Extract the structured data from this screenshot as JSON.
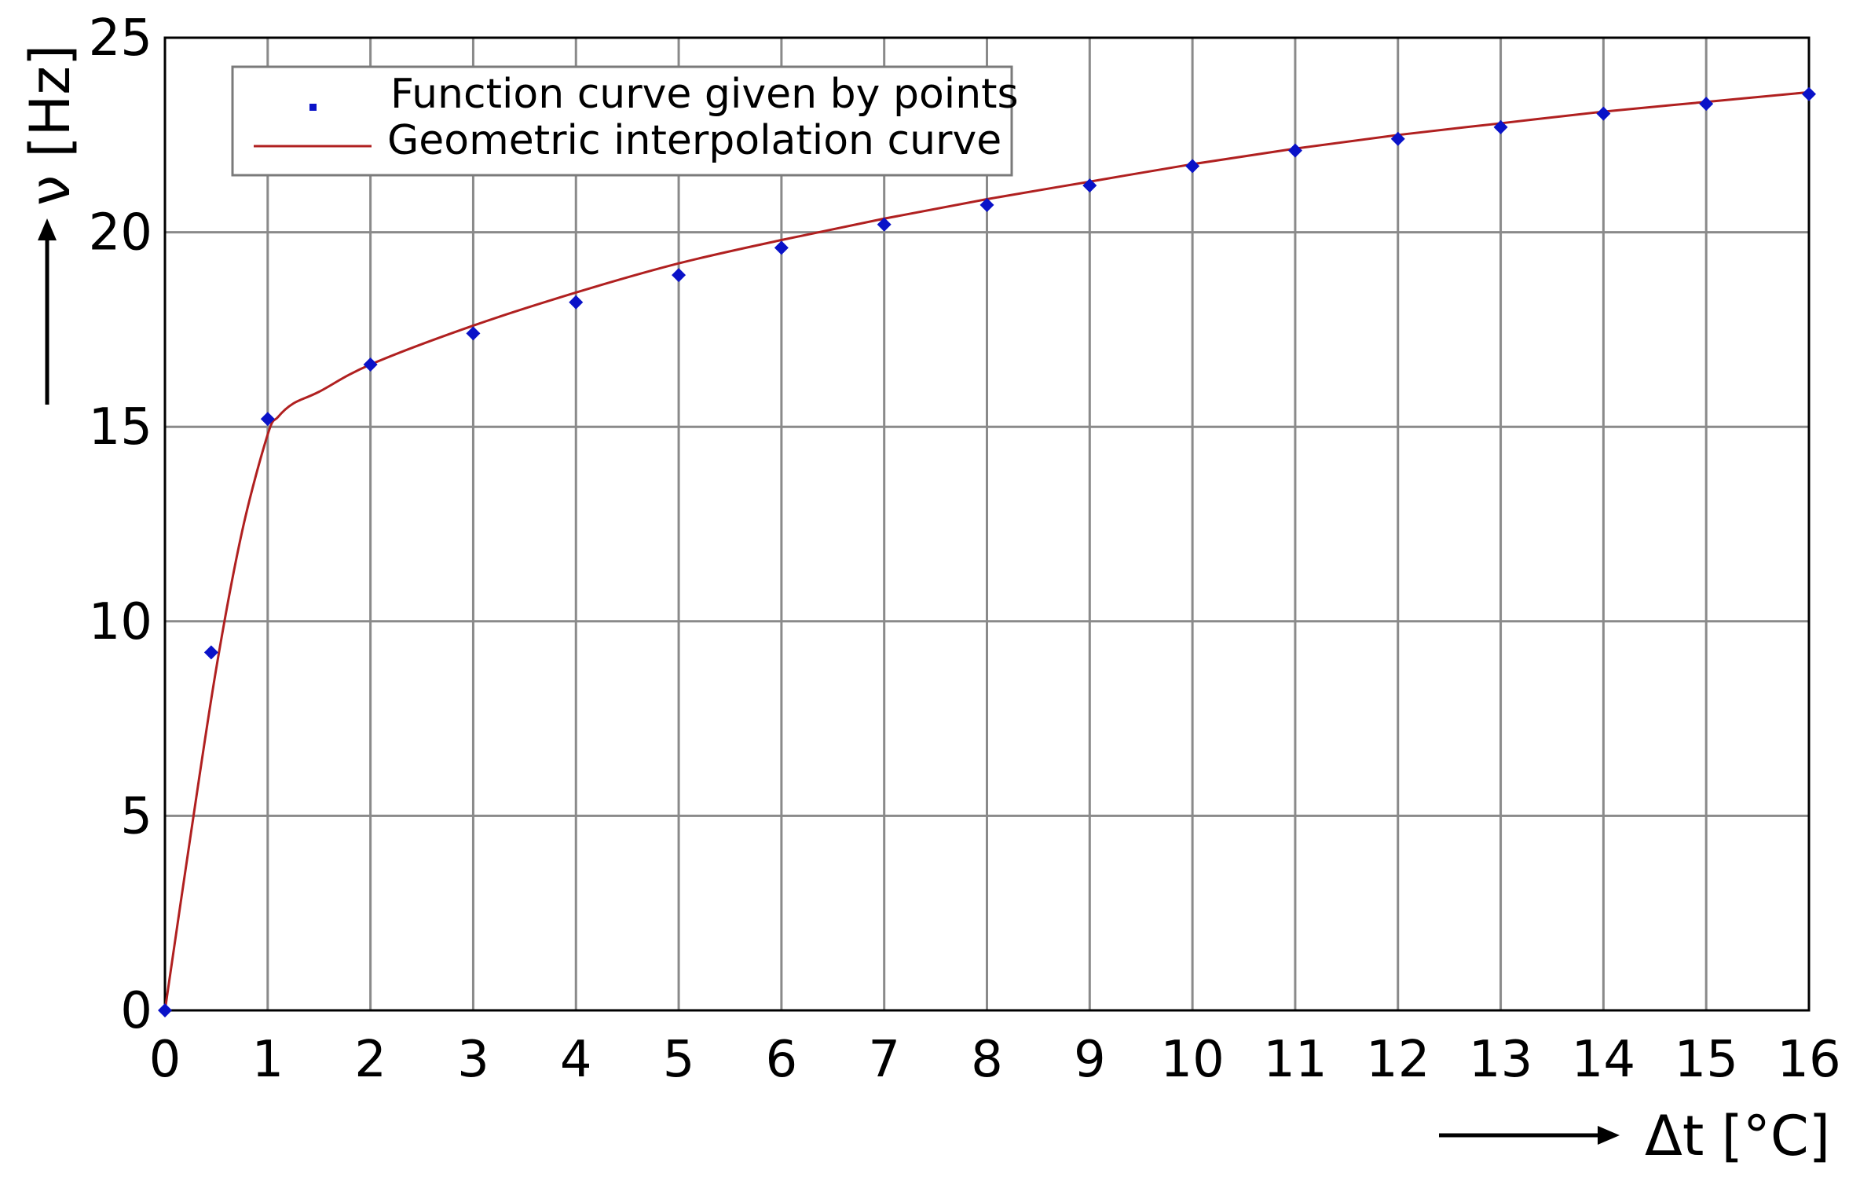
{
  "chart_data": {
    "type": "scatter",
    "x_tick_labels": [
      "0",
      "1",
      "2",
      "3",
      "4",
      "5",
      "6",
      "7",
      "8",
      "9",
      "10",
      "11",
      "12",
      "13",
      "14",
      "15",
      "16"
    ],
    "y_tick_labels": [
      "0",
      "5",
      "10",
      "15",
      "20",
      "25"
    ],
    "xlim": [
      0,
      16
    ],
    "ylim": [
      0,
      25
    ],
    "grid": true,
    "legend_position": "top-left",
    "xlabel": "Δt [°C]",
    "ylabel": "ν [Hz]",
    "series": [
      {
        "name": "Function curve given by points",
        "kind": "markers",
        "color": "#0a12c8",
        "x": [
          0,
          0.45,
          1,
          2,
          3,
          4,
          5,
          6,
          7,
          8,
          9,
          10,
          11,
          12,
          13,
          14,
          15,
          16
        ],
        "y": [
          0,
          9.2,
          15.2,
          16.6,
          17.4,
          18.2,
          18.9,
          19.6,
          20.2,
          20.7,
          21.2,
          21.7,
          22.1,
          22.4,
          22.7,
          23.05,
          23.3,
          23.55
        ]
      },
      {
        "name": "Geometric interpolation curve",
        "kind": "line",
        "color": "#b02020",
        "x": [
          0,
          0.25,
          0.5,
          0.75,
          1,
          1.1,
          1.25,
          1.5,
          2,
          3,
          4,
          5,
          6,
          7,
          8,
          9,
          10,
          11,
          12,
          13,
          14,
          15,
          16
        ],
        "y": [
          0,
          4.5,
          8.8,
          12.3,
          14.8,
          15.25,
          15.6,
          15.9,
          16.6,
          17.6,
          18.45,
          19.2,
          19.8,
          20.35,
          20.85,
          21.3,
          21.75,
          22.15,
          22.5,
          22.8,
          23.1,
          23.35,
          23.6
        ]
      }
    ]
  }
}
